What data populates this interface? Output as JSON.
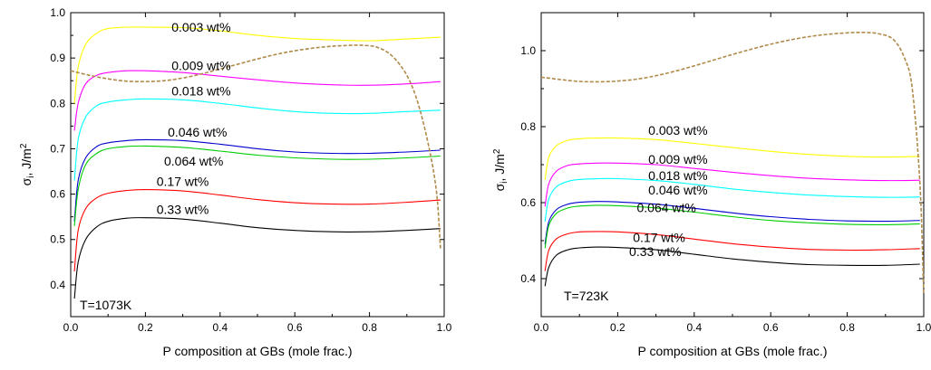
{
  "chart_data": [
    {
      "type": "line",
      "xlabel": "P composition at GBs (mole frac.)",
      "ylabel": "σ",
      "ylabel_sub": "i",
      "ylabel_unit": ", J/m",
      "ylabel_sup": "2",
      "xlim": [
        0.0,
        1.0
      ],
      "ylim": [
        0.33,
        1.0
      ],
      "xticks": [
        "0.0",
        "0.2",
        "0.4",
        "0.6",
        "0.8",
        "1.0"
      ],
      "yticks": [
        "0.4",
        "0.5",
        "0.6",
        "0.7",
        "0.8",
        "0.9",
        "1.0"
      ],
      "annotation": "T=1073K",
      "series": [
        {
          "name": "0.003 wt%",
          "color": "#ffff00",
          "x": [
            0.01,
            0.02,
            0.04,
            0.07,
            0.1,
            0.15,
            0.2,
            0.3,
            0.4,
            0.5,
            0.6,
            0.7,
            0.8,
            0.9,
            0.99
          ],
          "y": [
            0.8,
            0.88,
            0.93,
            0.955,
            0.965,
            0.968,
            0.968,
            0.967,
            0.96,
            0.95,
            0.943,
            0.94,
            0.938,
            0.942,
            0.946
          ]
        },
        {
          "name": "0.009 wt%",
          "color": "#ff00ff",
          "x": [
            0.01,
            0.02,
            0.04,
            0.07,
            0.1,
            0.15,
            0.2,
            0.3,
            0.4,
            0.5,
            0.6,
            0.7,
            0.8,
            0.9,
            0.99
          ],
          "y": [
            0.74,
            0.8,
            0.843,
            0.862,
            0.868,
            0.872,
            0.872,
            0.868,
            0.86,
            0.852,
            0.845,
            0.841,
            0.84,
            0.843,
            0.848
          ]
        },
        {
          "name": "0.018 wt%",
          "color": "#00ffff",
          "x": [
            0.01,
            0.02,
            0.04,
            0.07,
            0.1,
            0.15,
            0.2,
            0.3,
            0.4,
            0.5,
            0.6,
            0.7,
            0.8,
            0.9,
            0.99
          ],
          "y": [
            0.63,
            0.72,
            0.77,
            0.795,
            0.803,
            0.808,
            0.81,
            0.808,
            0.8,
            0.79,
            0.782,
            0.778,
            0.778,
            0.782,
            0.785
          ]
        },
        {
          "name": "0.046 wt%",
          "color": "#0000cc",
          "x": [
            0.01,
            0.02,
            0.04,
            0.07,
            0.1,
            0.15,
            0.2,
            0.3,
            0.4,
            0.5,
            0.6,
            0.7,
            0.8,
            0.9,
            0.99
          ],
          "y": [
            0.54,
            0.63,
            0.68,
            0.705,
            0.713,
            0.718,
            0.72,
            0.718,
            0.71,
            0.7,
            0.693,
            0.69,
            0.69,
            0.693,
            0.697
          ]
        },
        {
          "name": "0.064 wt%",
          "color": "#00cc00",
          "x": [
            0.01,
            0.02,
            0.04,
            0.07,
            0.1,
            0.15,
            0.2,
            0.3,
            0.4,
            0.5,
            0.6,
            0.7,
            0.8,
            0.9,
            0.99
          ],
          "y": [
            0.53,
            0.61,
            0.665,
            0.69,
            0.7,
            0.705,
            0.706,
            0.703,
            0.695,
            0.686,
            0.68,
            0.677,
            0.677,
            0.68,
            0.684
          ]
        },
        {
          "name": "0.17 wt%",
          "color": "#ff0000",
          "x": [
            0.01,
            0.02,
            0.04,
            0.07,
            0.1,
            0.15,
            0.2,
            0.3,
            0.4,
            0.5,
            0.6,
            0.7,
            0.8,
            0.9,
            0.99
          ],
          "y": [
            0.43,
            0.52,
            0.568,
            0.592,
            0.602,
            0.608,
            0.61,
            0.607,
            0.598,
            0.588,
            0.581,
            0.578,
            0.578,
            0.582,
            0.587
          ]
        },
        {
          "name": "0.33 wt%",
          "color": "#000000",
          "x": [
            0.01,
            0.02,
            0.04,
            0.07,
            0.1,
            0.15,
            0.2,
            0.3,
            0.4,
            0.5,
            0.6,
            0.7,
            0.8,
            0.9,
            0.99
          ],
          "y": [
            0.37,
            0.45,
            0.5,
            0.528,
            0.54,
            0.547,
            0.548,
            0.545,
            0.536,
            0.526,
            0.52,
            0.517,
            0.517,
            0.52,
            0.524
          ]
        },
        {
          "color": "#b08a4a",
          "dashed": true,
          "x": [
            0.0,
            0.05,
            0.1,
            0.15,
            0.2,
            0.25,
            0.3,
            0.35,
            0.4,
            0.45,
            0.5,
            0.55,
            0.6,
            0.65,
            0.7,
            0.75,
            0.78,
            0.82,
            0.86,
            0.9,
            0.93,
            0.96,
            0.98,
            0.99
          ],
          "y": [
            0.872,
            0.862,
            0.854,
            0.849,
            0.848,
            0.85,
            0.856,
            0.865,
            0.876,
            0.887,
            0.898,
            0.908,
            0.916,
            0.922,
            0.926,
            0.928,
            0.928,
            0.924,
            0.905,
            0.862,
            0.8,
            0.7,
            0.6,
            0.48
          ]
        }
      ]
    },
    {
      "type": "line",
      "xlabel": "P composition at GBs (mole frac.)",
      "ylabel": "σ",
      "ylabel_sub": "i",
      "ylabel_unit": ", J/m",
      "ylabel_sup": "2",
      "xlim": [
        0.0,
        1.0
      ],
      "ylim": [
        0.3,
        1.1
      ],
      "xticks": [
        "0.0",
        "0.2",
        "0.4",
        "0.6",
        "0.8",
        "1.0"
      ],
      "yticks": [
        "0.4",
        "0.6",
        "0.8",
        "1.0"
      ],
      "annotation": "T=723K",
      "series": [
        {
          "name": "0.003 wt%",
          "color": "#ffff00",
          "x": [
            0.01,
            0.02,
            0.04,
            0.07,
            0.1,
            0.15,
            0.2,
            0.3,
            0.4,
            0.5,
            0.6,
            0.7,
            0.8,
            0.9,
            0.99
          ],
          "y": [
            0.66,
            0.72,
            0.75,
            0.764,
            0.768,
            0.77,
            0.77,
            0.766,
            0.756,
            0.745,
            0.735,
            0.727,
            0.722,
            0.72,
            0.722
          ]
        },
        {
          "name": "0.009 wt%",
          "color": "#ff00ff",
          "x": [
            0.01,
            0.02,
            0.04,
            0.07,
            0.1,
            0.15,
            0.2,
            0.3,
            0.4,
            0.5,
            0.6,
            0.7,
            0.8,
            0.9,
            0.99
          ],
          "y": [
            0.59,
            0.65,
            0.683,
            0.698,
            0.702,
            0.704,
            0.704,
            0.7,
            0.69,
            0.68,
            0.671,
            0.664,
            0.66,
            0.658,
            0.659
          ]
        },
        {
          "name": "0.018 wt%",
          "color": "#00ffff",
          "x": [
            0.01,
            0.02,
            0.04,
            0.07,
            0.1,
            0.15,
            0.2,
            0.3,
            0.4,
            0.5,
            0.6,
            0.7,
            0.8,
            0.9,
            0.99
          ],
          "y": [
            0.55,
            0.61,
            0.642,
            0.656,
            0.661,
            0.663,
            0.663,
            0.658,
            0.648,
            0.636,
            0.627,
            0.62,
            0.616,
            0.614,
            0.615
          ]
        },
        {
          "name": "0.046 wt%",
          "color": "#0000cc",
          "x": [
            0.01,
            0.02,
            0.04,
            0.07,
            0.1,
            0.15,
            0.2,
            0.3,
            0.4,
            0.5,
            0.6,
            0.7,
            0.8,
            0.9,
            0.99
          ],
          "y": [
            0.49,
            0.55,
            0.582,
            0.596,
            0.601,
            0.603,
            0.602,
            0.596,
            0.585,
            0.573,
            0.563,
            0.556,
            0.552,
            0.551,
            0.553
          ]
        },
        {
          "name": "0.064 wt%",
          "color": "#00cc00",
          "x": [
            0.01,
            0.02,
            0.04,
            0.07,
            0.1,
            0.15,
            0.2,
            0.3,
            0.4,
            0.5,
            0.6,
            0.7,
            0.8,
            0.9,
            0.99
          ],
          "y": [
            0.48,
            0.54,
            0.572,
            0.586,
            0.591,
            0.593,
            0.592,
            0.586,
            0.575,
            0.563,
            0.553,
            0.547,
            0.543,
            0.542,
            0.544
          ]
        },
        {
          "name": "0.17 wt%",
          "color": "#ff0000",
          "x": [
            0.01,
            0.02,
            0.04,
            0.07,
            0.1,
            0.15,
            0.2,
            0.3,
            0.4,
            0.5,
            0.6,
            0.7,
            0.8,
            0.9,
            0.99
          ],
          "y": [
            0.42,
            0.475,
            0.505,
            0.518,
            0.523,
            0.524,
            0.523,
            0.516,
            0.504,
            0.492,
            0.483,
            0.477,
            0.475,
            0.476,
            0.479
          ]
        },
        {
          "name": "0.33 wt%",
          "color": "#000000",
          "x": [
            0.01,
            0.02,
            0.04,
            0.07,
            0.1,
            0.15,
            0.2,
            0.3,
            0.4,
            0.5,
            0.6,
            0.7,
            0.8,
            0.9,
            0.99
          ],
          "y": [
            0.38,
            0.43,
            0.462,
            0.476,
            0.481,
            0.483,
            0.482,
            0.476,
            0.464,
            0.452,
            0.443,
            0.437,
            0.435,
            0.435,
            0.438
          ]
        },
        {
          "color": "#b08a4a",
          "dashed": true,
          "x": [
            0.0,
            0.05,
            0.1,
            0.15,
            0.2,
            0.25,
            0.3,
            0.35,
            0.4,
            0.45,
            0.5,
            0.55,
            0.6,
            0.65,
            0.7,
            0.75,
            0.8,
            0.84,
            0.88,
            0.92,
            0.95,
            0.97,
            0.99,
            1.0
          ],
          "y": [
            0.93,
            0.924,
            0.919,
            0.918,
            0.92,
            0.925,
            0.934,
            0.946,
            0.96,
            0.975,
            0.99,
            1.004,
            1.017,
            1.028,
            1.037,
            1.043,
            1.047,
            1.048,
            1.045,
            1.03,
            0.98,
            0.9,
            0.65,
            0.36
          ]
        }
      ]
    }
  ]
}
